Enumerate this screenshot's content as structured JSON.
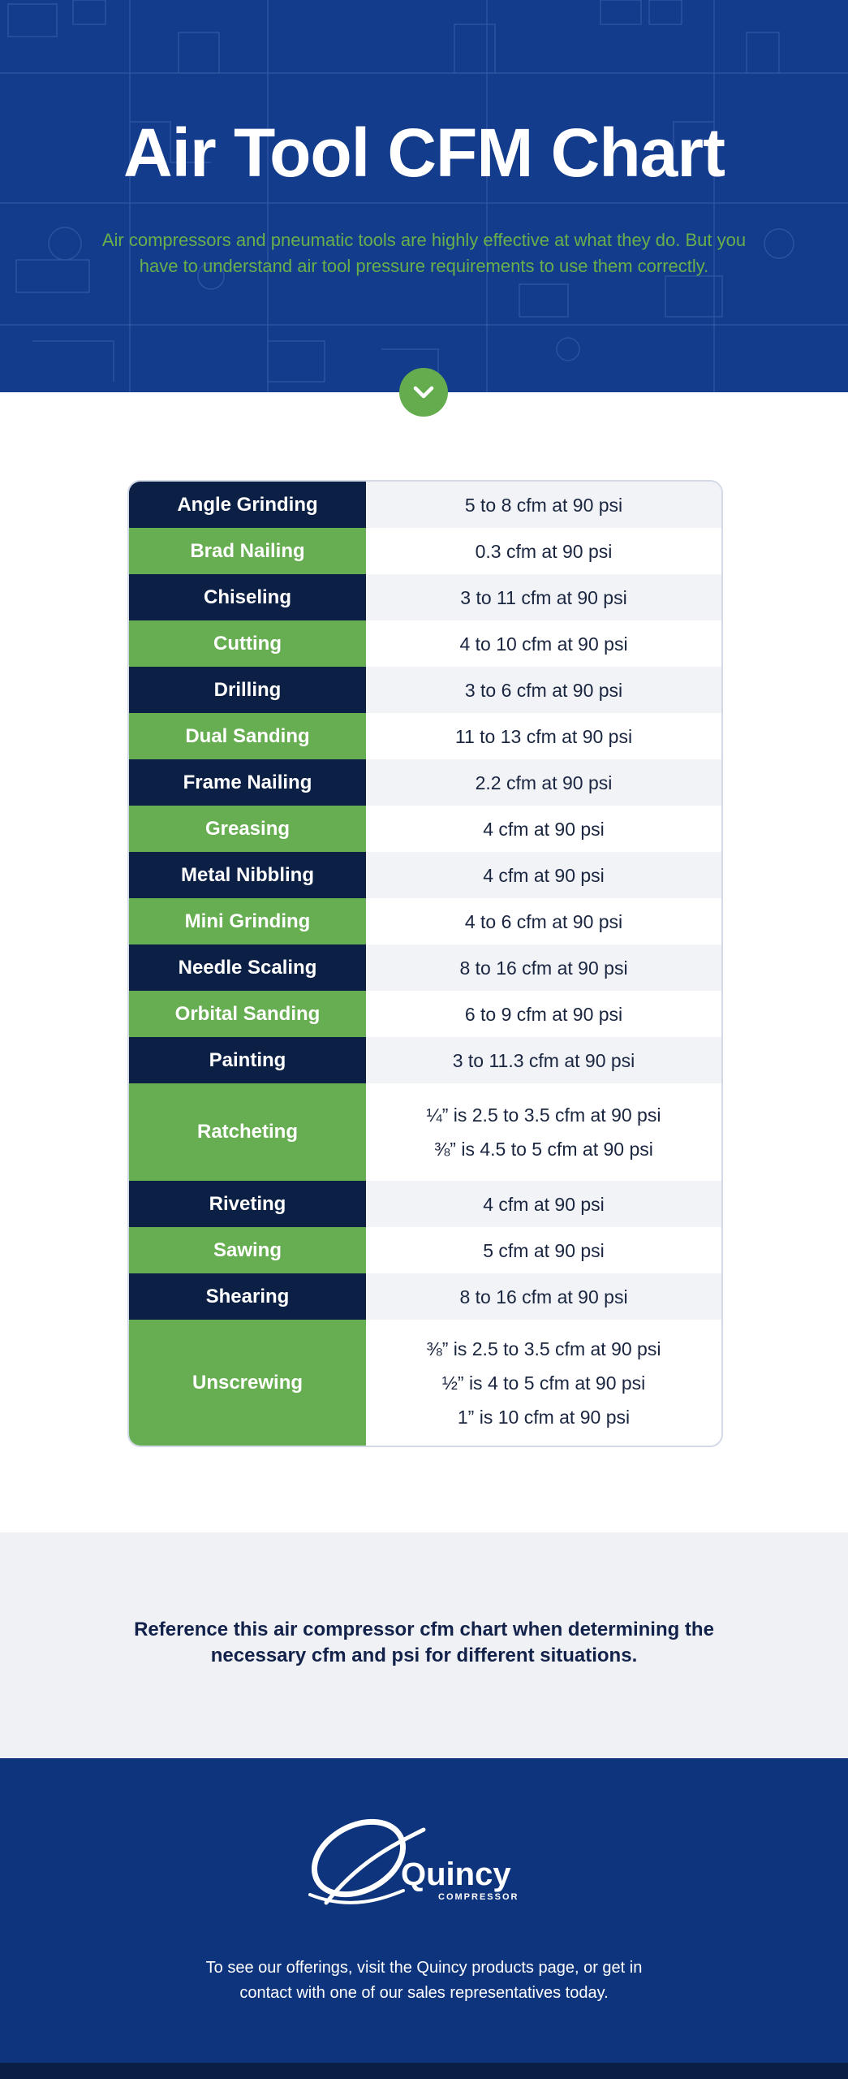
{
  "hero": {
    "title": "Air Tool CFM Chart",
    "subtitle": "Air compressors and pneumatic tools are highly effective at what they do. But you have to understand air tool pressure requirements to use them correctly."
  },
  "table": {
    "rows": [
      {
        "tool": "Angle Grinding",
        "values": [
          "5 to 8 cfm at 90 psi"
        ]
      },
      {
        "tool": "Brad Nailing",
        "values": [
          "0.3 cfm at 90 psi"
        ]
      },
      {
        "tool": "Chiseling",
        "values": [
          "3 to 11 cfm at 90 psi"
        ]
      },
      {
        "tool": "Cutting",
        "values": [
          "4 to 10 cfm at 90 psi"
        ]
      },
      {
        "tool": "Drilling",
        "values": [
          "3 to 6 cfm at 90 psi"
        ]
      },
      {
        "tool": "Dual Sanding",
        "values": [
          "11 to 13 cfm at 90 psi"
        ]
      },
      {
        "tool": "Frame Nailing",
        "values": [
          "2.2 cfm at 90 psi"
        ]
      },
      {
        "tool": "Greasing",
        "values": [
          "4 cfm at 90 psi"
        ]
      },
      {
        "tool": "Metal Nibbling",
        "values": [
          "4 cfm at 90 psi"
        ]
      },
      {
        "tool": "Mini Grinding",
        "values": [
          "4 to 6 cfm at 90 psi"
        ]
      },
      {
        "tool": "Needle Scaling",
        "values": [
          "8 to 16 cfm at 90 psi"
        ]
      },
      {
        "tool": "Orbital Sanding",
        "values": [
          "6 to 9 cfm at 90 psi"
        ]
      },
      {
        "tool": "Painting",
        "values": [
          "3 to 11.3 cfm at 90 psi"
        ]
      },
      {
        "tool": "Ratcheting",
        "values": [
          "¼” is 2.5 to 3.5 cfm at 90 psi",
          "⅜” is 4.5 to 5 cfm at 90 psi"
        ]
      },
      {
        "tool": "Riveting",
        "values": [
          "4 cfm at 90 psi"
        ]
      },
      {
        "tool": "Sawing",
        "values": [
          "5 cfm at 90 psi"
        ]
      },
      {
        "tool": "Shearing",
        "values": [
          "8 to 16 cfm at 90 psi"
        ]
      },
      {
        "tool": "Unscrewing",
        "values": [
          "⅜” is 2.5 to 3.5 cfm at 90 psi",
          "½” is 4 to 5 cfm at 90 psi",
          "1” is 10 cfm at 90 psi"
        ]
      }
    ]
  },
  "note": {
    "text": "Reference this air compressor cfm chart when determining the necessary cfm and psi for different situations."
  },
  "footer": {
    "logo_name": "Quincy",
    "logo_sub": "COMPRESSOR",
    "text": "To see our offerings, visit the Quincy products page, or get in contact with one of our sales representatives today."
  },
  "icons": {
    "down_button": "chevron-down-icon",
    "logo": "quincy-logo-icon"
  },
  "colors": {
    "hero_bg": "#143c8c",
    "accent_green": "#67ad51",
    "dark_navy": "#0c1f44",
    "footer_bg": "#0e347d"
  }
}
